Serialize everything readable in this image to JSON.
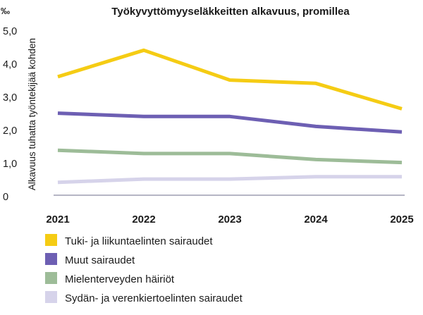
{
  "chart_data": {
    "type": "line",
    "title": "Työkyvyttömyyseläkkeitten alkavuus, promillea",
    "unit": "‰",
    "ylabel": "Alkavuus tuhatta työntekijää kohden",
    "xlabel": "",
    "x": [
      "2021",
      "2022",
      "2023",
      "2024",
      "2025"
    ],
    "ylim": [
      0,
      5
    ],
    "yticks": [
      0,
      1,
      2,
      3,
      4,
      5
    ],
    "ytick_labels": [
      "0",
      "1,0",
      "2,0",
      "3,0",
      "4,0",
      "5,0"
    ],
    "grid": false,
    "legend_position": "bottom",
    "series": [
      {
        "name": "Tuki- ja liikuntaelinten sairaudet",
        "color": "#f5cc14",
        "values": [
          3.62,
          4.42,
          3.52,
          3.42,
          2.65
        ]
      },
      {
        "name": "Muut sairaudet",
        "color": "#6d5fb3",
        "values": [
          2.52,
          2.42,
          2.42,
          2.12,
          1.95
        ]
      },
      {
        "name": "Mielenterveyden häiriöt",
        "color": "#9dbc98",
        "values": [
          1.4,
          1.3,
          1.3,
          1.12,
          1.03
        ]
      },
      {
        "name": "Sydän- ja verenkiertoelinten sairaudet",
        "color": "#d6d3ea",
        "values": [
          0.43,
          0.53,
          0.53,
          0.6,
          0.6
        ]
      }
    ]
  }
}
